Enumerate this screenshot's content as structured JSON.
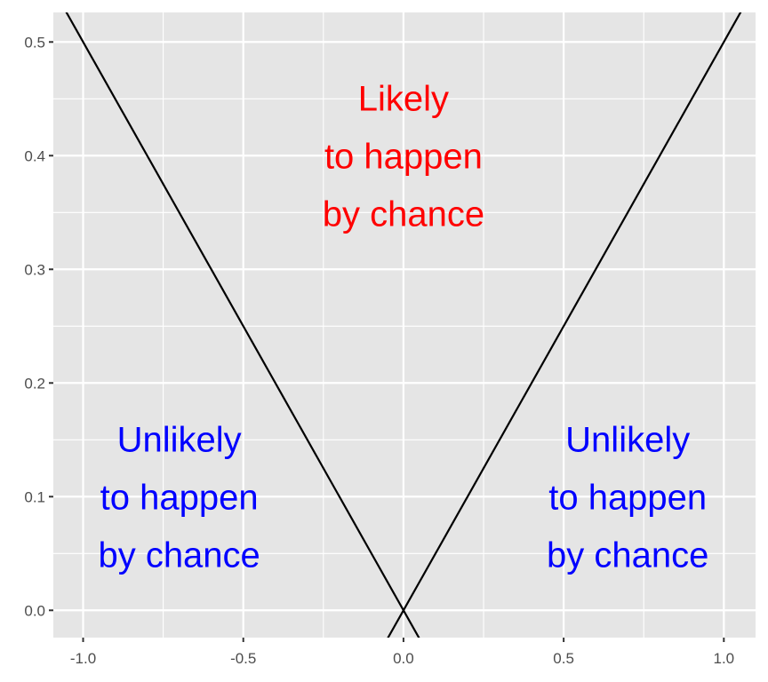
{
  "chart_data": {
    "type": "line",
    "title": "",
    "xlabel": "",
    "ylabel": "",
    "xlim": [
      -1.093,
      1.099
    ],
    "ylim": [
      -0.024,
      0.526
    ],
    "grid": true,
    "x_ticks": [
      -1.0,
      -0.5,
      0.0,
      0.5,
      1.0
    ],
    "x_tick_labels": [
      "-1.0",
      "-0.5",
      "0.0",
      "0.5",
      "1.0"
    ],
    "y_ticks": [
      0.0,
      0.1,
      0.2,
      0.3,
      0.4,
      0.5
    ],
    "y_tick_labels": [
      "0.0",
      "0.1",
      "0.2",
      "0.3",
      "0.4",
      "0.5"
    ],
    "series": [
      {
        "x": [
          -1.2,
          0.1
        ],
        "y": [
          0.6,
          -0.05
        ],
        "color": "#000000"
      },
      {
        "x": [
          -0.1,
          1.2
        ],
        "y": [
          -0.05,
          0.6
        ],
        "color": "#000000"
      }
    ],
    "annotations": [
      {
        "lines": [
          "Likely",
          "to happen",
          "by chance"
        ],
        "x": 0.0,
        "y": 0.4,
        "color": "#ff0000"
      },
      {
        "lines": [
          "Unlikely",
          "to happen",
          "by chance"
        ],
        "x": -0.7,
        "y": 0.1,
        "color": "#0000ff"
      },
      {
        "lines": [
          "Unlikely",
          "to happen",
          "by chance"
        ],
        "x": 0.7,
        "y": 0.1,
        "color": "#0000ff"
      }
    ],
    "panel_color": "#e5e5e5",
    "grid_color": "#ffffff"
  }
}
